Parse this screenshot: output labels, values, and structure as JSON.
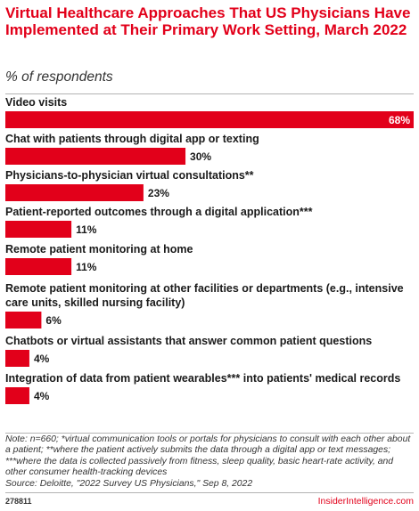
{
  "header": {
    "title": "Virtual Healthcare Approaches That US Physicians Have Implemented at Their Primary Work Setting, March 2022",
    "subtitle": "% of respondents"
  },
  "footer": {
    "note": "Note: n=660; *virtual communication tools or portals for physicians to consult with each other about a patient; **where the patient actively submits the data through a digital app or text messages; ***where the data is collected passively from fitness, sleep quality, basic heart-rate activity, and other consumer health-tracking devices",
    "source": "Source: Deloitte, \"2022 Survey US Physicians,\" Sep 8, 2022",
    "chart_id": "278811",
    "brand": "InsiderIntelligence.com"
  },
  "chart_data": {
    "type": "bar",
    "orientation": "horizontal",
    "title": "Virtual Healthcare Approaches That US Physicians Have Implemented at Their Primary Work Setting, March 2022",
    "subtitle": "% of respondents",
    "categories": [
      "Video visits",
      "Chat with patients through digital app or texting",
      "Physicians-to-physician virtual consultations**",
      "Patient-reported outcomes through a digital application***",
      "Remote patient monitoring at home",
      "Remote patient monitoring at other facilities or departments (e.g., intensive care units, skilled nursing facility)",
      "Chatbots or virtual assistants that answer common patient questions",
      "Integration of data from patient wearables*** into patients' medical records"
    ],
    "values": [
      68,
      30,
      23,
      11,
      11,
      6,
      4,
      4
    ],
    "value_labels": [
      "68%",
      "30%",
      "23%",
      "11%",
      "11%",
      "6%",
      "4%",
      "4%"
    ],
    "unit": "%",
    "xlim": [
      0,
      68
    ],
    "bar_color": "#e2001a",
    "grid": false,
    "legend": "none"
  }
}
